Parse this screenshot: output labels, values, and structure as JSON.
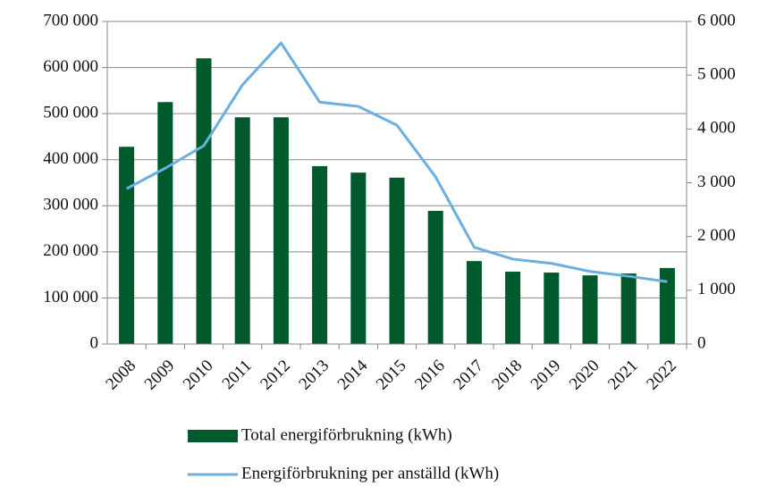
{
  "chart_data": {
    "type": "bar",
    "categories": [
      "2008",
      "2009",
      "2010",
      "2011",
      "2012",
      "2013",
      "2014",
      "2015",
      "2016",
      "2017",
      "2018",
      "2019",
      "2020",
      "2021",
      "2022"
    ],
    "series": [
      {
        "name": "Total energiförbrukning (kWh)",
        "type": "bar",
        "color": "#005a2b",
        "values": [
          428000,
          525000,
          620000,
          492000,
          492000,
          386000,
          372000,
          361000,
          289000,
          180000,
          157000,
          155000,
          149000,
          153000,
          165000
        ]
      },
      {
        "name": "Energiförbrukning per anställd (kWh)",
        "type": "line",
        "axis": "y2",
        "color": "#6aaee2",
        "values": [
          2890,
          3270,
          3690,
          4820,
          5600,
          4500,
          4420,
          4070,
          3110,
          1800,
          1580,
          1500,
          1350,
          1260,
          1160
        ]
      }
    ],
    "ylim": [
      0,
      700000
    ],
    "yticks": [
      0,
      {
        "value": 100000,
        "label": "100 000"
      },
      {
        "value": 200000,
        "label": "200 000"
      },
      {
        "value": 300000,
        "label": "300 000"
      },
      {
        "value": 400000,
        "label": "400 000"
      },
      {
        "value": 500000,
        "label": "500 000"
      },
      {
        "value": 600000,
        "label": "600 000"
      },
      {
        "value": 700000,
        "label": "700 000"
      }
    ],
    "y2lim": [
      0,
      6000
    ],
    "y2ticks": [
      0,
      {
        "value": 1000,
        "label": "1 000"
      },
      {
        "value": 2000,
        "label": "2 000"
      },
      {
        "value": 3000,
        "label": "3 000"
      },
      {
        "value": 4000,
        "label": "4 000"
      },
      {
        "value": 5000,
        "label": "5 000"
      },
      {
        "value": 6000,
        "label": "6 000"
      }
    ],
    "grid": true,
    "legend": "bottom"
  }
}
